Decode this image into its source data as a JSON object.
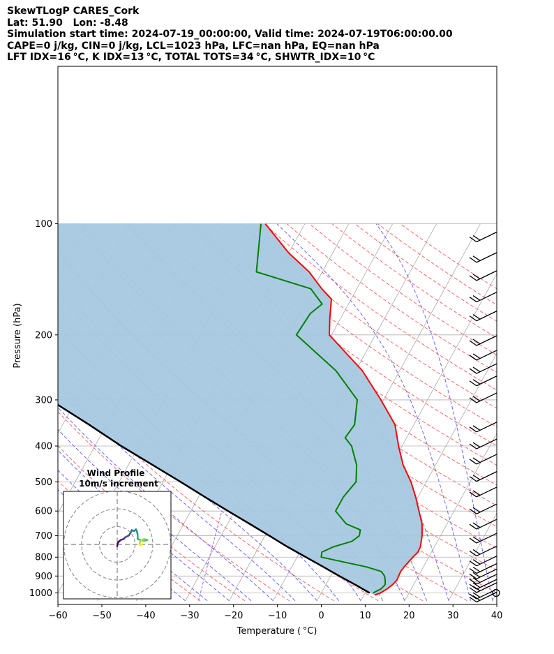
{
  "header": {
    "line1": "SkewTLogP CARES_Cork",
    "line2": "Lat: 51.90   Lon: -8.48",
    "line3": "Simulation start time: 2024-07-19_00:00:00, Valid time: 2024-07-19T06:00:00.00",
    "line4": "CAPE=0 j/kg, CIN=0 j/kg, LCL=1023 hPa, LFC=nan hPa, EQ=nan hPa",
    "line5": "LFT IDX=16 °C, K IDX=13 °C, TOTAL TOTS=34 °C, SHWTR_IDX=10 °C"
  },
  "colors": {
    "temperature": "#ff0000",
    "dewpoint": "#008000",
    "parcel": "#000000",
    "cin_fill": "#a6c8e0",
    "dry_adiabat": "#ff6666",
    "moist_adiabat": "#6666ff",
    "mixing_ratio": "#aa66cc",
    "isotherm": "#aaaaaa"
  },
  "chart_data": [
    {
      "type": "line",
      "subtype": "skew-T log-P",
      "xlabel": "Temperature ( °C)",
      "ylabel": "Pressure (hPa)",
      "xlim": [
        -60,
        40
      ],
      "ylim": [
        1050,
        100
      ],
      "y_scale": "log",
      "x_ticks": [
        "−60",
        "−50",
        "−40",
        "−30",
        "−20",
        "−10",
        "0",
        "10",
        "20",
        "30",
        "40"
      ],
      "x_tick_values": [
        -60,
        -50,
        -40,
        -30,
        -20,
        -10,
        0,
        10,
        20,
        30,
        40
      ],
      "y_ticks": [
        "1000",
        "900",
        "800",
        "700",
        "600",
        "500",
        "400",
        "300",
        "200",
        "100"
      ],
      "y_tick_values": [
        1000,
        900,
        800,
        700,
        600,
        500,
        400,
        300,
        200,
        100
      ],
      "grid": true,
      "series": [
        {
          "role": "temperature",
          "points": [
            [
              1013,
              12.4
            ],
            [
              1000,
              13.5
            ],
            [
              975,
              14.5
            ],
            [
              950,
              15.2
            ],
            [
              925,
              15.6
            ],
            [
              900,
              15.5
            ],
            [
              875,
              15.4
            ],
            [
              850,
              15.6
            ],
            [
              825,
              16.0
            ],
            [
              800,
              16.4
            ],
            [
              775,
              16.9
            ],
            [
              750,
              16.8
            ],
            [
              700,
              15.8
            ],
            [
              650,
              14.3
            ],
            [
              600,
              12.0
            ],
            [
              550,
              9.5
            ],
            [
              500,
              6.5
            ],
            [
              450,
              2.6
            ],
            [
              400,
              -0.8
            ],
            [
              350,
              -4.3
            ],
            [
              300,
              -10.6
            ],
            [
              250,
              -18.5
            ],
            [
              200,
              -30.5
            ],
            [
              180,
              -32.5
            ],
            [
              160,
              -34.5
            ],
            [
              150,
              -38.0
            ],
            [
              135,
              -43.0
            ],
            [
              120,
              -50.0
            ],
            [
              100,
              -59.0
            ]
          ]
        },
        {
          "role": "dewpoint",
          "points": [
            [
              1000,
              11.8
            ],
            [
              975,
              13.1
            ],
            [
              950,
              13.5
            ],
            [
              925,
              13.0
            ],
            [
              900,
              12.3
            ],
            [
              875,
              11.0
            ],
            [
              850,
              7.0
            ],
            [
              800,
              -4.5
            ],
            [
              775,
              -5.0
            ],
            [
              750,
              -3.0
            ],
            [
              725,
              0.5
            ],
            [
              700,
              1.5
            ],
            [
              675,
              1.0
            ],
            [
              650,
              -3.0
            ],
            [
              600,
              -7.0
            ],
            [
              550,
              -7.0
            ],
            [
              500,
              -6.0
            ],
            [
              450,
              -8.0
            ],
            [
              400,
              -11.5
            ],
            [
              380,
              -14.0
            ],
            [
              350,
              -13.5
            ],
            [
              300,
              -16.0
            ],
            [
              250,
              -24.5
            ],
            [
              200,
              -38.0
            ],
            [
              175,
              -37.5
            ],
            [
              165,
              -36.0
            ],
            [
              150,
              -40.5
            ],
            [
              135,
              -55.0
            ],
            [
              100,
              -60.0
            ]
          ]
        },
        {
          "role": "parcel",
          "points": [
            [
              1000,
              11.0
            ],
            [
              950,
              6.7
            ],
            [
              900,
              2.0
            ],
            [
              850,
              -2.8
            ],
            [
              800,
              -8.0
            ],
            [
              750,
              -13.5
            ],
            [
              700,
              -19.0
            ],
            [
              650,
              -25.0
            ],
            [
              600,
              -31.5
            ],
            [
              550,
              -38.5
            ],
            [
              500,
              -46.0
            ],
            [
              450,
              -54.5
            ],
            [
              400,
              -64.0
            ],
            [
              350,
              -74.0
            ],
            [
              300,
              -86.0
            ],
            [
              250,
              -100.0
            ],
            [
              200,
              -116.0
            ],
            [
              150,
              -137.0
            ],
            [
              100,
              -165.0
            ]
          ]
        }
      ],
      "wind_barbs": {
        "pressures": [
          1040,
          1020,
          1000,
          980,
          960,
          930,
          900,
          870,
          830,
          780,
          720,
          660,
          600,
          540,
          490,
          440,
          400,
          360,
          300,
          270,
          250,
          230,
          210,
          180,
          160,
          140,
          125,
          110
        ],
        "calm_at": [
          1000
        ]
      }
    },
    {
      "type": "line",
      "subtype": "hodograph",
      "title": "Wind Profile",
      "subtitle": "10m/s increment",
      "ring_step_ms": 10,
      "rings": 3,
      "points_uv": [
        [
          0.0,
          -1.0
        ],
        [
          0.2,
          0.5
        ],
        [
          0.8,
          1.5
        ],
        [
          2.0,
          2.5
        ],
        [
          3.5,
          3.0
        ],
        [
          4.5,
          4.0
        ],
        [
          5.5,
          4.5
        ],
        [
          6.5,
          5.0
        ],
        [
          7.5,
          6.5
        ],
        [
          8.2,
          8.0
        ],
        [
          9.5,
          7.5
        ],
        [
          10.5,
          8.5
        ],
        [
          11.0,
          7.5
        ],
        [
          11.5,
          5.5
        ],
        [
          11.5,
          3.0
        ],
        [
          13.0,
          2.5
        ],
        [
          15.0,
          2.0
        ],
        [
          17.0,
          2.5
        ],
        [
          15.0,
          3.0
        ],
        [
          13.0,
          2.0
        ],
        [
          12.5,
          0.0
        ],
        [
          13.5,
          -0.5
        ],
        [
          14.0,
          0.0
        ]
      ]
    }
  ]
}
